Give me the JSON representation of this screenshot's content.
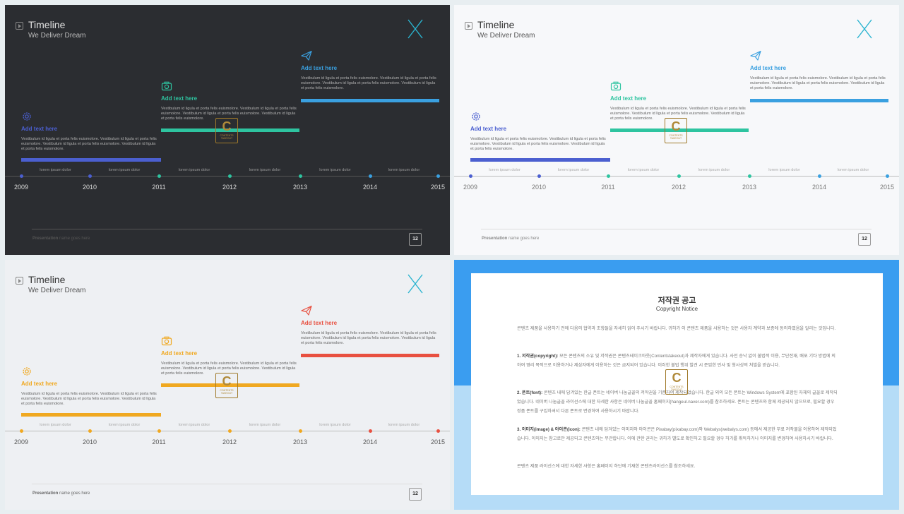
{
  "slides": [
    {
      "title": "Timeline",
      "subtitle": "We Deliver Dream",
      "items": [
        {
          "icon": "gear-icon",
          "heading": "Add text here",
          "body": "Vestibulum id ligula et porta felis euismolore. Vestibulum id ligula et porta felis euismolore. Vestibulum id ligula et porta felis euismolore. Vestibulum id ligula et porta felis euismolore."
        },
        {
          "icon": "camera-icon",
          "heading": "Add text here",
          "body": "Vestibulum id ligula et porta felis euismolore. Vestibulum id ligula et porta felis euismolore. Vestibulum id ligula et porta felis euismolore. Vestibulum id ligula et porta felis euismolore."
        },
        {
          "icon": "paper-plane-icon",
          "heading": "Add text here",
          "body": "Vestibulum id ligula et porta felis euismolore. Vestibulum id ligula et porta felis euismolore. Vestibulum id ligula et porta felis euismolore. Vestibulum id ligula et porta felis euismolore."
        }
      ],
      "segments": [
        "lorem ipsum dolor",
        "lorem ipsum dolor",
        "lorem ipsum dolor",
        "lorem ipsum dolor",
        "lorem ipsum dolor",
        "lorem ipsum dolor"
      ],
      "years": [
        "2009",
        "2010",
        "2011",
        "2012",
        "2013",
        "2014",
        "2015"
      ],
      "footer_bold": "Presentation",
      "footer_rest": " name goes here",
      "page": "12",
      "colors": {
        "item1": "#4b5fd0",
        "item2": "#2ec4a0",
        "item3": "#3aa0e0"
      }
    },
    {
      "title": "Timeline",
      "subtitle": "We Deliver Dream",
      "items": [
        {
          "icon": "gear-icon",
          "heading": "Add text here",
          "body": "Vestibulum id ligula et porta felis euismolore. Vestibulum id ligula et porta felis euismolore. Vestibulum id ligula et porta felis euismolore. Vestibulum id ligula et porta felis euismolore."
        },
        {
          "icon": "camera-icon",
          "heading": "Add text here",
          "body": "Vestibulum id ligula et porta felis euismolore. Vestibulum id ligula et porta felis euismolore. Vestibulum id ligula et porta felis euismolore. Vestibulum id ligula et porta felis euismolore."
        },
        {
          "icon": "paper-plane-icon",
          "heading": "Add text here",
          "body": "Vestibulum id ligula et porta felis euismolore. Vestibulum id ligula et porta felis euismolore. Vestibulum id ligula et porta felis euismolore. Vestibulum id ligula et porta felis euismolore."
        }
      ],
      "segments": [
        "lorem ipsum dolor",
        "lorem ipsum dolor",
        "lorem ipsum dolor",
        "lorem ipsum dolor",
        "lorem ipsum dolor",
        "lorem ipsum dolor"
      ],
      "years": [
        "2009",
        "2010",
        "2011",
        "2012",
        "2013",
        "2014",
        "2015"
      ],
      "footer_bold": "Presentation",
      "footer_rest": " name goes here",
      "page": "12",
      "colors": {
        "item1": "#4b5fd0",
        "item2": "#2ec4a0",
        "item3": "#3aa0e0"
      }
    },
    {
      "title": "Timeline",
      "subtitle": "We Deliver Dream",
      "items": [
        {
          "icon": "gear-icon",
          "heading": "Add text here",
          "body": "Vestibulum id ligula et porta felis euismolore. Vestibulum id ligula et porta felis euismolore. Vestibulum id ligula et porta felis euismolore. Vestibulum id ligula et porta felis euismolore."
        },
        {
          "icon": "camera-icon",
          "heading": "Add text here",
          "body": "Vestibulum id ligula et porta felis euismolore. Vestibulum id ligula et porta felis euismolore. Vestibulum id ligula et porta felis euismolore. Vestibulum id ligula et porta felis euismolore."
        },
        {
          "icon": "paper-plane-icon",
          "heading": "Add text here",
          "body": "Vestibulum id ligula et porta felis euismolore. Vestibulum id ligula et porta felis euismolore. Vestibulum id ligula et porta felis euismolore. Vestibulum id ligula et porta felis euismolore."
        }
      ],
      "segments": [
        "lorem ipsum dolor",
        "lorem ipsum dolor",
        "lorem ipsum dolor",
        "lorem ipsum dolor",
        "lorem ipsum dolor",
        "lorem ipsum dolor"
      ],
      "years": [
        "2009",
        "2010",
        "2011",
        "2012",
        "2013",
        "2014",
        "2015"
      ],
      "footer_bold": "Presentation",
      "footer_rest": " name goes here",
      "page": "12",
      "colors": {
        "item1": "#f0a820",
        "item2": "#f0a820",
        "item3": "#e85040"
      }
    }
  ],
  "copyright": {
    "title": "저작권 공고",
    "subtitle": "Copyright Notice",
    "intro": "콘텐츠 제품을 사용하기 전에 다음의 협약과 조항들을 자세히 읽어 주시기 바랍니다. 귀하가 이 콘텐츠 제품을 사용하는 것은 사용자 계약과 보증에 동의하였음을 알리는 것입니다.",
    "p1_head": "1. 저작권(copyright):",
    "p1": " 모든 콘텐츠의 소유 및 저작권은 콘텐츠테이크아웃(Contentstakeout)과 제작자에게 있습니다. 사전 승낙 없이 불법적 이용, 무단전재, 배포 기타 방법에 의하여 영리 목적으로 이용하거나 제삼자에게 이용하는 것은 금지되어 있습니다. 이러한 불법 행위 발견 시 준엄한 민사 및 형사상의 처벌을 받습니다.",
    "p2_head": "2. 폰트(font):",
    "p2": " 콘텐츠 내에 담겨있는 한글 폰트는 네이버 나눔글꼴의 저작권을 기준하여 제작되었습니다. 한글 외의 모든 폰트는 Windows System에 포함된 자체의 글꼴로 제작되었습니다. 네이버 나눔글꼴 라이선스에 대한 자세한 사항은 네이버 나눔글꼴 홈페이지(hangeul.naver.com)를 참조하세요. 폰트는 콘텐츠와 함께 제공되지 않으므로, 필요할 경우 정품 폰트를 구입하셔서 다른 폰트로 변경하여 사용하시기 바랍니다.",
    "p3_head": "3. 이미지(image) & 아이콘(icon):",
    "p3": " 콘텐츠 내에 담겨있는 이미지와 아이콘은 Pixabay(pixabay.com)와 Webalys(webalys.com) 등에서 제공한 무료 저작물을 이용하여 제작되었습니다. 이미지는 참고로만 제공되고 콘텐츠와는 무관합니다. 이에 관한 권리는 귀하가 별도로 확인하고 필요할 경우 허가를 취득하거나 이미지를 변경하여 사용하시기 바랍니다.",
    "outro": "콘텐츠 제품 라이선스에 대한 자세한 사항은 홈페이지 하단에 기재한 콘텐츠라이선스를 참조하세요."
  },
  "watermark": {
    "letter": "C",
    "text": "CONTENTS TAKEOUT"
  }
}
